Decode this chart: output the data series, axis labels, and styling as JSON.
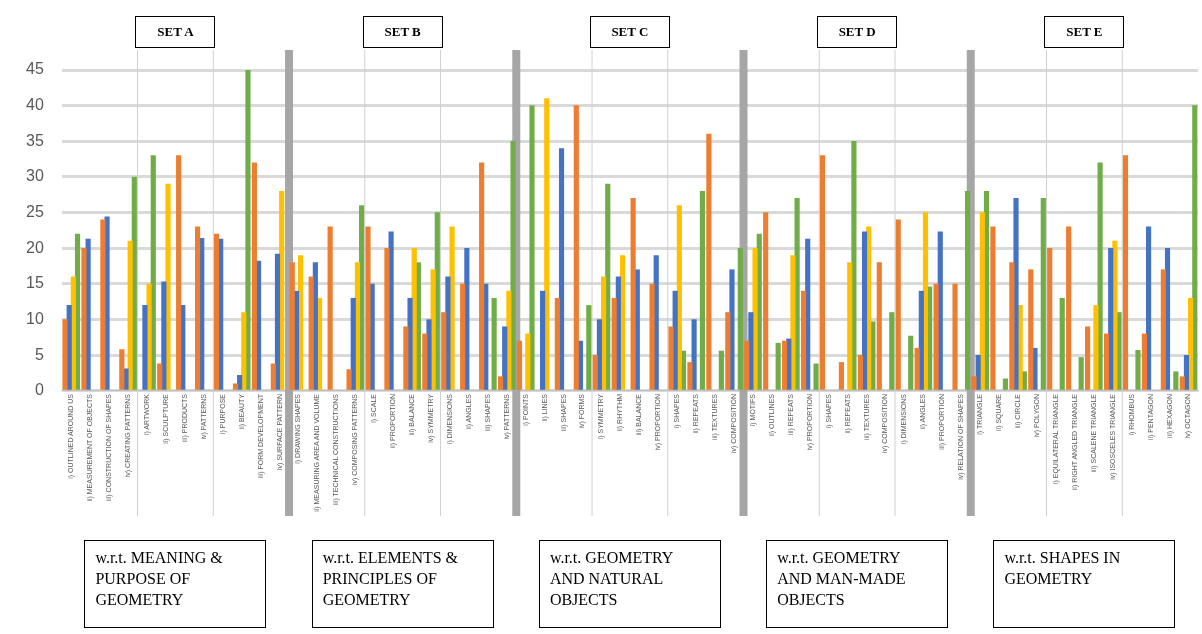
{
  "chart_data": {
    "type": "bar",
    "categories": [
      "i) OUTLINED AROUND US",
      "ii) MEASUREMENT OF OBJECTS",
      "iii) CONSTRUCTION OF SHAPES",
      "iv) CREATING PATTERNS",
      "i) ARTWORK",
      "ii) SCULPTURE",
      "iii) PRODUCTS",
      "iv) PATTERNS",
      "i) PURPOSE",
      "ii) BEAUTY",
      "iii) FORM DEVELOPMENT",
      "iv) SURFACE PATTERN",
      "i) DRAWING SHAPES",
      "ii) MEASURING AREA AND VOLUME",
      "iii) TECHNICAL CONSTRUCTIONS",
      "iv) COMPOSING PATTERNS",
      "i) SCALE",
      "ii) PROPORTION",
      "iii) BALANCE",
      "iv) SYMMETRY",
      "i) DIMENSIONS",
      "ii) ANGLES",
      "iii) SHAPES",
      "iv) PATTERNS",
      "i) POINTS",
      "ii) LINES",
      "iii) SHAPES",
      "iv) FORMS",
      "i) SYMMETRY",
      "ii) RHYTHM",
      "iii) BALANCE",
      "iv) PROPORTION",
      "i) SHAPES",
      "ii) REPEATS",
      "iii) TEXTURES",
      "iv) COMPOSITION",
      "i) MOTIFS",
      "ii) OUTLINES",
      "iii) REPEATS",
      "iv) PROPORTION",
      "i) SHAPES",
      "ii) REPEATS",
      "iii) TEXTURES",
      "iv) COMPOSITION",
      "i) DIMENSIONS",
      "ii) ANGLES",
      "iii) PROPORTION",
      "iv) RELATION OF SHAPES",
      "i) TRIANGLE",
      "ii) SQUARE",
      "iii) CIRCLE",
      "iv) POLYGON",
      "i) EQUILATERAL TRIANGLE",
      "ii) RIGHT ANGLED TRIANGLE",
      "iii) SCALENE TRIANGLE",
      "iv) ISOSCELES TRIANGLE",
      "i) RHOMBUS",
      "ii) PENTAGON",
      "iii) HEXAGON",
      "iv) OCTAGON"
    ],
    "series": [
      {
        "color": "#ed7d31",
        "values": [
          10,
          20,
          24,
          5.8,
          null,
          3.8,
          33,
          23,
          22,
          1,
          32,
          3.8,
          18,
          16,
          23,
          3,
          23,
          20,
          9,
          8,
          11,
          15,
          32,
          2,
          7,
          null,
          13,
          40,
          5,
          13,
          27,
          15,
          9,
          4,
          36,
          11,
          7,
          25,
          7,
          14,
          33,
          4,
          5,
          18,
          24,
          6,
          15,
          15,
          2,
          23,
          18,
          17,
          20,
          23,
          9,
          8,
          33,
          8,
          17,
          2
        ]
      },
      {
        "color": "#4472c4",
        "values": [
          12,
          21.3,
          24.4,
          3.1,
          12,
          15.3,
          12,
          21.4,
          21.3,
          2.2,
          18.2,
          19.2,
          14,
          18,
          null,
          13,
          15,
          22.3,
          13,
          10,
          16,
          20,
          15,
          9,
          null,
          14,
          34,
          7,
          10,
          16,
          17,
          19,
          14,
          10,
          null,
          17,
          11,
          null,
          7.3,
          21.3,
          null,
          null,
          22.3,
          null,
          null,
          14,
          22.3,
          null,
          5,
          null,
          27,
          6,
          null,
          null,
          null,
          20,
          null,
          23,
          20,
          5
        ]
      },
      {
        "color": "#ffc000",
        "values": [
          16,
          null,
          null,
          21,
          15,
          29,
          null,
          null,
          null,
          11,
          null,
          28,
          19,
          13,
          null,
          18,
          null,
          null,
          20,
          17,
          23,
          null,
          null,
          14,
          8,
          41,
          null,
          null,
          16,
          19,
          null,
          null,
          26,
          null,
          null,
          null,
          20,
          null,
          19,
          null,
          null,
          18,
          23,
          null,
          null,
          25,
          null,
          null,
          25,
          null,
          12,
          null,
          null,
          null,
          12,
          21,
          null,
          null,
          null,
          13
        ]
      },
      {
        "color": "#70ad47",
        "values": [
          22,
          null,
          null,
          30,
          33,
          null,
          null,
          null,
          null,
          45,
          null,
          null,
          null,
          null,
          null,
          26,
          null,
          null,
          18,
          25,
          null,
          null,
          13,
          35,
          40,
          null,
          null,
          12,
          29,
          null,
          null,
          null,
          5.6,
          28,
          5.6,
          20,
          22,
          6.7,
          27,
          3.8,
          null,
          35,
          9.7,
          11,
          7.7,
          14.6,
          null,
          28,
          28,
          1.7,
          2.7,
          27,
          13,
          4.7,
          32,
          11,
          5.7,
          null,
          2.7,
          40
        ]
      }
    ],
    "ylim": [
      0,
      45
    ],
    "yticks": [
      0,
      5,
      10,
      15,
      20,
      25,
      30,
      35,
      40,
      45
    ],
    "grid": "y",
    "annotations": [
      "SET A",
      "SET B",
      "SET C",
      "SET D",
      "SET E",
      "w.r.t. MEANING & PURPOSE OF GEOMETRY",
      "w.r.t. ELEMENTS & PRINCIPLES OF GEOMETRY",
      "w.r.t. GEOMETRY AND NATURAL OBJECTS",
      "w.r.t. GEOMETRY AND MAN-MADE OBJECTS",
      "w.r.t. SHAPES IN GEOMETRY"
    ]
  }
}
